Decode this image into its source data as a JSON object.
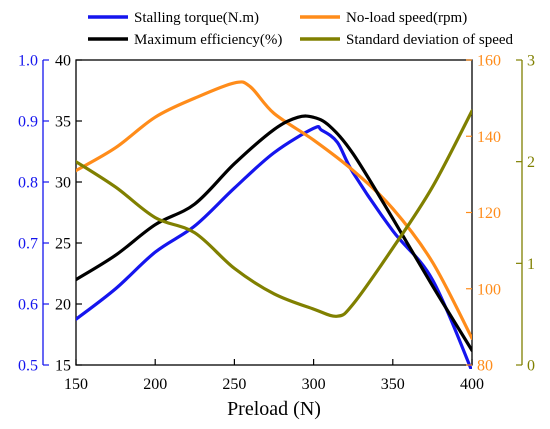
{
  "chart_data": {
    "type": "line",
    "title": "",
    "xlabel": "Preload (N)",
    "xlim": [
      150,
      400
    ],
    "x_ticks": [
      "150",
      "200",
      "250",
      "300",
      "350",
      "400"
    ],
    "legend_placement": "top",
    "grid": false,
    "axes": {
      "left_outer": {
        "lim": [
          0.5,
          1.0
        ],
        "ticks": [
          "0.5",
          "0.6",
          "0.7",
          "0.8",
          "0.9",
          "1.0"
        ],
        "color": "#1515ee"
      },
      "left_inner": {
        "lim": [
          15,
          40
        ],
        "ticks": [
          "15",
          "20",
          "25",
          "30",
          "35",
          "40"
        ],
        "color": "#000000"
      },
      "right_inner": {
        "lim": [
          80,
          160
        ],
        "ticks": [
          "80",
          "100",
          "120",
          "140",
          "160"
        ],
        "color": "#ff8c1a"
      },
      "right_outer": {
        "lim": [
          0,
          3
        ],
        "ticks": [
          "0",
          "1",
          "2",
          "3"
        ],
        "color": "#808000"
      }
    },
    "series": [
      {
        "name": "Stalling torque(N.m)",
        "axis": "left_outer",
        "color": "#1515ee",
        "x": [
          150,
          175,
          200,
          225,
          250,
          275,
          300,
          305,
          315,
          325,
          350,
          375,
          400
        ],
        "y": [
          0.575,
          0.625,
          0.685,
          0.728,
          0.79,
          0.848,
          0.888,
          0.885,
          0.865,
          0.815,
          0.72,
          0.64,
          0.49
        ]
      },
      {
        "name": "No-load speed(rpm)",
        "axis": "right_inner",
        "color": "#ff8c1a",
        "x": [
          150,
          175,
          200,
          225,
          250,
          260,
          275,
          300,
          325,
          350,
          375,
          400
        ],
        "y": [
          131,
          137,
          145,
          150,
          154,
          153,
          146,
          139,
          131,
          121,
          107,
          87
        ]
      },
      {
        "name": "Maximum efficiency(%)",
        "axis": "left_inner",
        "color": "#000000",
        "x": [
          150,
          175,
          200,
          225,
          250,
          275,
          290,
          300,
          310,
          325,
          350,
          375,
          400
        ],
        "y": [
          22,
          24,
          26.5,
          28.2,
          31.5,
          34.3,
          35.3,
          35.3,
          34.6,
          32.3,
          27,
          21.5,
          16.2
        ]
      },
      {
        "name": "Standard deviation of speed",
        "axis": "right_outer",
        "color": "#808000",
        "x": [
          150,
          175,
          200,
          225,
          250,
          275,
          300,
          315,
          325,
          350,
          375,
          400
        ],
        "y": [
          2.0,
          1.75,
          1.45,
          1.3,
          0.95,
          0.7,
          0.55,
          0.48,
          0.6,
          1.15,
          1.75,
          2.5
        ]
      }
    ]
  }
}
